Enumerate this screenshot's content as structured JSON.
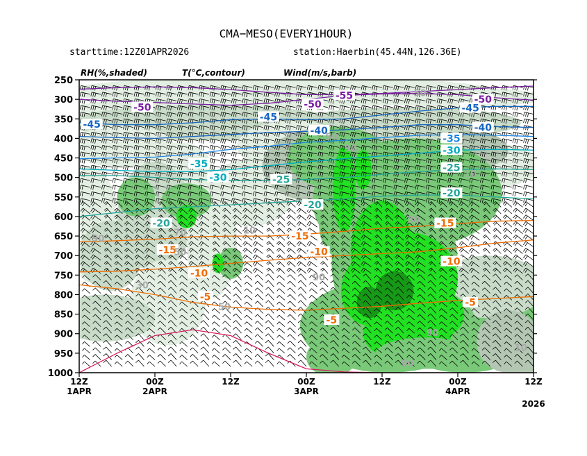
{
  "chart_data": {
    "type": "time-height cross section",
    "title": "CMA−MESO(EVERY1HOUR)",
    "starttime": "starttime:12Z01APR2026",
    "station": "station:Haerbin(45.44N,126.36E)",
    "legend_labels": [
      "RH(%,shaded)",
      "T(°C,contour)",
      "Wind(m/s,barb)"
    ],
    "y_ticks": [
      250,
      300,
      350,
      400,
      450,
      500,
      550,
      600,
      650,
      700,
      750,
      800,
      850,
      900,
      950,
      1000
    ],
    "ylim": [
      250,
      1000
    ],
    "x_ticks": [
      {
        "h": 0,
        "top": "12Z",
        "bottom": ""
      },
      {
        "h": 12,
        "top": "00Z",
        "bottom": "4APR"
      },
      {
        "h": 24,
        "top": "12Z",
        "bottom": ""
      },
      {
        "h": 36,
        "top": "00Z",
        "bottom": "3APR"
      },
      {
        "h": 48,
        "top": "12Z",
        "bottom": ""
      },
      {
        "h": 60,
        "top": "00Z",
        "bottom": "2APR"
      },
      {
        "h": 72,
        "top": "12Z",
        "bottom": "1APR"
      }
    ],
    "x_year_label": "2026",
    "xlim": [
      0,
      72
    ],
    "temperature_contours": [
      {
        "value": -55,
        "label": "-55",
        "color": "#7b1fa2",
        "p": [
          266,
          270,
          275,
          280,
          285,
          288,
          288,
          282,
          275,
          270,
          268,
          270,
          274
        ]
      },
      {
        "value": -50,
        "label": "-50",
        "color": "#7b1fa2",
        "p": [
          302,
          296,
          288,
          285,
          286,
          290,
          300,
          310,
          315,
          312,
          308,
          305,
          300
        ]
      },
      {
        "value": -45,
        "label": "-45",
        "color": "#1565c0",
        "p": [
          318,
          318,
          322,
          330,
          340,
          350,
          352,
          350,
          352,
          360,
          365,
          365,
          360
        ]
      },
      {
        "value": -40,
        "label": "-40",
        "color": "#1565c0",
        "p": [
          372,
          370,
          365,
          365,
          372,
          378,
          382,
          385,
          390,
          395,
          400,
          398,
          395
        ]
      },
      {
        "value": -35,
        "label": "-35",
        "color": "#1e88e5",
        "p": [
          395,
          392,
          390,
          392,
          398,
          405,
          410,
          420,
          428,
          440,
          448,
          450,
          452
        ]
      },
      {
        "value": -30,
        "label": "-30",
        "color": "#00acc1",
        "p": [
          430,
          428,
          430,
          438,
          445,
          452,
          460,
          470,
          480,
          485,
          485,
          482,
          478
        ]
      },
      {
        "value": -25,
        "label": "-25",
        "color": "#26a69a",
        "p": [
          480,
          478,
          480,
          485,
          492,
          500,
          505,
          508,
          508,
          505,
          500,
          495,
          495
        ]
      },
      {
        "value": -20,
        "label": "-20",
        "color": "#26a69a",
        "p": [
          555,
          550,
          545,
          545,
          548,
          555,
          560,
          565,
          570,
          575,
          580,
          590,
          600
        ]
      },
      {
        "value": -15,
        "label": "-15",
        "color": "#ef6c00",
        "p": [
          610,
          612,
          618,
          625,
          630,
          638,
          645,
          650,
          650,
          652,
          658,
          662,
          665
        ]
      },
      {
        "value": -10,
        "label": "-10",
        "color": "#ef6c00",
        "p": [
          660,
          668,
          680,
          690,
          695,
          700,
          705,
          712,
          720,
          728,
          735,
          740,
          742
        ]
      },
      {
        "value": -5,
        "label": "-5",
        "color": "#ef6c00",
        "p": [
          805,
          810,
          815,
          822,
          830,
          835,
          840,
          838,
          832,
          820,
          800,
          785,
          775
        ]
      },
      {
        "value": 0,
        "label": "",
        "color": "#d81b60",
        "p": [
          1000,
          1000,
          1000,
          1000,
          1000,
          998,
          990,
          950,
          905,
          890,
          905,
          950,
          1000
        ]
      }
    ],
    "contour_label_texts": [
      {
        "h": 8,
        "p": 300,
        "text": "-50",
        "color": "#7b1fa2"
      },
      {
        "h": 30,
        "p": 290,
        "text": "-55",
        "color": "#7b1fa2"
      },
      {
        "h": 35,
        "p": 312,
        "text": "-50",
        "color": "#7b1fa2"
      },
      {
        "h": 62,
        "p": 320,
        "text": "-50",
        "color": "#7b1fa2"
      },
      {
        "h": 10,
        "p": 322,
        "text": "-45",
        "color": "#1565c0"
      },
      {
        "h": 42,
        "p": 345,
        "text": "-45",
        "color": "#1565c0"
      },
      {
        "h": 70,
        "p": 364,
        "text": "-45",
        "color": "#1565c0"
      },
      {
        "h": 8,
        "p": 372,
        "text": "-40",
        "color": "#1565c0"
      },
      {
        "h": 34,
        "p": 380,
        "text": "-40",
        "color": "#1565c0"
      },
      {
        "h": 13,
        "p": 400,
        "text": "-35",
        "color": "#1e88e5"
      },
      {
        "h": 53,
        "p": 465,
        "text": "-35",
        "color": "#00acc1"
      },
      {
        "h": 13,
        "p": 430,
        "text": "-30",
        "color": "#00acc1"
      },
      {
        "h": 50,
        "p": 500,
        "text": "-30",
        "color": "#00acc1"
      },
      {
        "h": 13,
        "p": 475,
        "text": "-25",
        "color": "#26a69a"
      },
      {
        "h": 40,
        "p": 505,
        "text": "-25",
        "color": "#26a69a"
      },
      {
        "h": 13,
        "p": 540,
        "text": "-20",
        "color": "#26a69a"
      },
      {
        "h": 35,
        "p": 570,
        "text": "-20",
        "color": "#26a69a"
      },
      {
        "h": 59,
        "p": 617,
        "text": "-20",
        "color": "#26a69a"
      },
      {
        "h": 14,
        "p": 617,
        "text": "-15",
        "color": "#ef6c00"
      },
      {
        "h": 37,
        "p": 650,
        "text": "-15",
        "color": "#ef6c00"
      },
      {
        "h": 58,
        "p": 685,
        "text": "-15",
        "color": "#ef6c00"
      },
      {
        "h": 34,
        "p": 690,
        "text": "-10",
        "color": "#ef6c00"
      },
      {
        "h": 13,
        "p": 715,
        "text": "-10",
        "color": "#ef6c00"
      },
      {
        "h": 53,
        "p": 745,
        "text": "-10",
        "color": "#ef6c00"
      },
      {
        "h": 10,
        "p": 820,
        "text": "-5",
        "color": "#ef6c00"
      },
      {
        "h": 32,
        "p": 865,
        "text": "-5",
        "color": "#ef6c00"
      },
      {
        "h": 52,
        "p": 805,
        "text": "-5",
        "color": "#ef6c00"
      }
    ],
    "rh_labels": [
      {
        "h": 18,
        "p": 283,
        "text": "50"
      },
      {
        "h": 32,
        "p": 395,
        "text": "50"
      },
      {
        "h": 29,
        "p": 425,
        "text": "90"
      },
      {
        "h": 10,
        "p": 490,
        "text": "10"
      },
      {
        "h": 19,
        "p": 607,
        "text": "30"
      },
      {
        "h": 45,
        "p": 635,
        "text": "10"
      },
      {
        "h": 56,
        "p": 640,
        "text": "70"
      },
      {
        "h": 56,
        "p": 690,
        "text": "50"
      },
      {
        "h": 69,
        "p": 655,
        "text": "90"
      },
      {
        "h": 62,
        "p": 775,
        "text": "30"
      },
      {
        "h": 34,
        "p": 755,
        "text": "90"
      },
      {
        "h": 49,
        "p": 830,
        "text": "50"
      },
      {
        "h": 16,
        "p": 897,
        "text": "90"
      },
      {
        "h": 2,
        "p": 935,
        "text": "10"
      },
      {
        "h": 20,
        "p": 975,
        "text": "90"
      }
    ],
    "rh_levels": {
      "light": "#e3efe3",
      "mid": "#c9dcc9",
      "gray": "#b3c7b3",
      "green": "#79c979",
      "bright": "#22e022",
      "dark": "#169916"
    },
    "grid": false
  }
}
